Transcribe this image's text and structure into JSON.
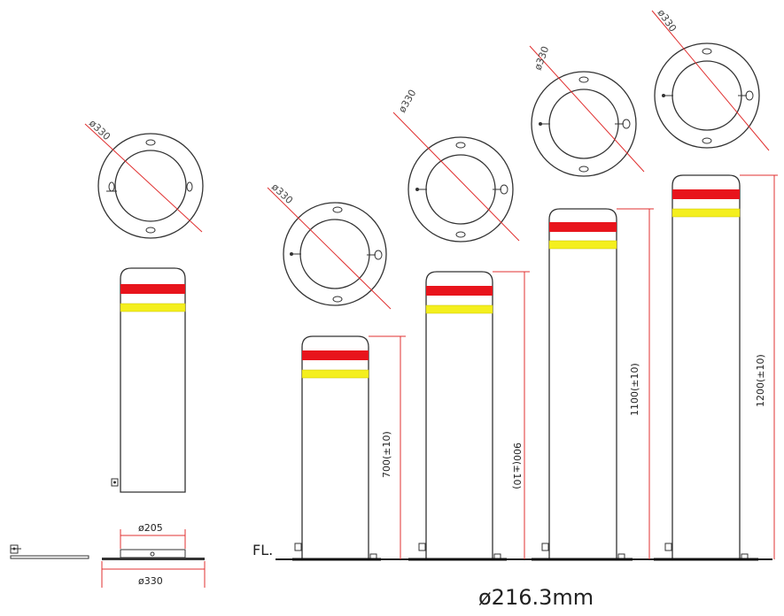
{
  "colors": {
    "line": "#333333",
    "dim_line": "#e03030",
    "red_band": "#e8141c",
    "yellow_band": "#f4ef1e",
    "ground": "#111111"
  },
  "labels": {
    "flange_diameter": "ø330",
    "inner_diameter": "ø205",
    "base_diameter": "ø330",
    "ground_line": "FL.",
    "pipe_diameter": "ø216.3mm"
  },
  "bollards": [
    {
      "id": "detail",
      "height_label": ""
    },
    {
      "id": "b700",
      "height_label": "700(±10)"
    },
    {
      "id": "b900",
      "height_label": "900(±10)"
    },
    {
      "id": "b1100",
      "height_label": "1100(±10)"
    },
    {
      "id": "b1200",
      "height_label": "1200(±10)"
    }
  ]
}
